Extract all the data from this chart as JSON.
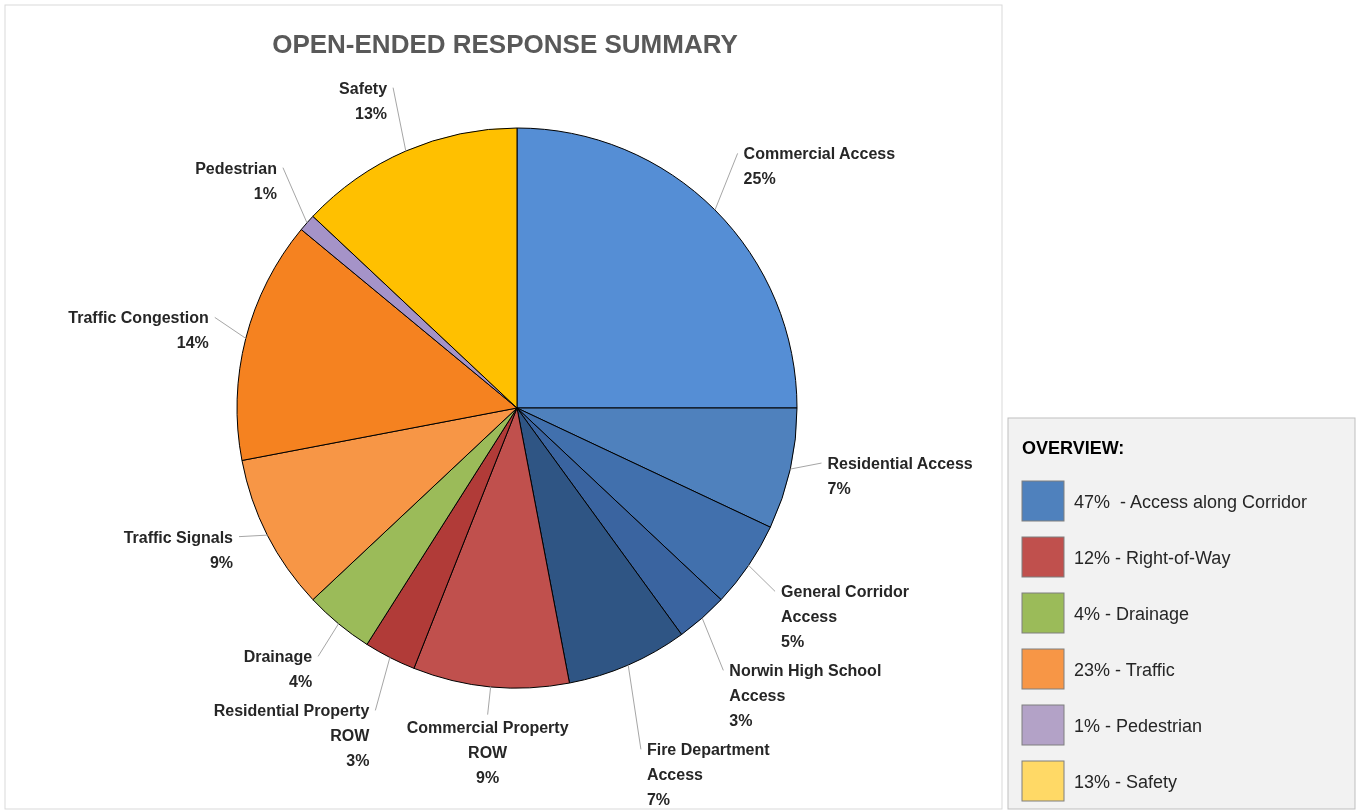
{
  "chart_data": [
    {
      "type": "pie",
      "title": "OPEN-ENDED RESPONSE SUMMARY",
      "categories": [
        "Commercial Access",
        "Residential Access",
        "General Corridor Access",
        "Norwin High School Access",
        "Fire Department Access",
        "Commercial Property ROW",
        "Residential Property ROW",
        "Drainage",
        "Traffic Signals",
        "Traffic Congestion",
        "Pedestrian",
        "Safety"
      ],
      "values": [
        25,
        7,
        5,
        3,
        7,
        9,
        3,
        4,
        9,
        14,
        1,
        13
      ],
      "colors": [
        "#558ed5",
        "#4f81bd",
        "#4170ad",
        "#3a64a0",
        "#2f5584",
        "#c0504d",
        "#b13b38",
        "#9bbb59",
        "#f79646",
        "#f58220",
        "#a593c8",
        "#ffc000"
      ],
      "value_labels": [
        "25%",
        "7%",
        "5%",
        "3%",
        "7%",
        "9%",
        "3%",
        "4%",
        "9%",
        "14%",
        "1%",
        "13%"
      ]
    },
    {
      "type": "other",
      "title": "OVERVIEW:",
      "annotations": [
        "47%  - Access along Corridor",
        "12% - Right-of-Way",
        "4% - Drainage",
        "23% - Traffic",
        "1% - Pedestrian",
        "13% - Safety"
      ],
      "colors": [
        "#4f81bd",
        "#c0504d",
        "#9bbb59",
        "#f79646",
        "#b3a2c7",
        "#ffd966"
      ]
    }
  ]
}
